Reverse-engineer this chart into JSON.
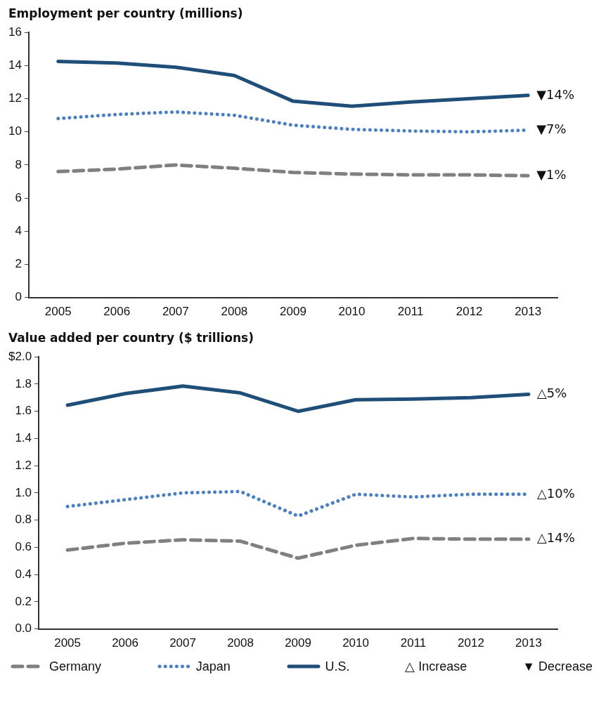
{
  "chart_data": [
    {
      "type": "line",
      "title": "Employment per country (millions)",
      "categories": [
        "2005",
        "2006",
        "2007",
        "2008",
        "2009",
        "2010",
        "2011",
        "2012",
        "2013"
      ],
      "ylim": [
        0,
        16
      ],
      "yticks": [
        0,
        2,
        4,
        6,
        8,
        10,
        12,
        14,
        16
      ],
      "grid": false,
      "legend": false,
      "marker": "none",
      "series": [
        {
          "color": "#808080",
          "line_style": "dashed",
          "values": [
            7.6,
            7.75,
            8.0,
            7.8,
            7.55,
            7.45,
            7.4,
            7.4,
            7.35
          ]
        },
        {
          "color": "#4a7fc1",
          "line_style": "dotted",
          "values": [
            10.8,
            11.05,
            11.2,
            11.0,
            10.4,
            10.15,
            10.05,
            10.0,
            10.1
          ]
        },
        {
          "color": "#1f4e79",
          "line_style": "solid",
          "values": [
            14.25,
            14.15,
            13.9,
            13.4,
            11.85,
            11.55,
            11.8,
            12.0,
            12.2
          ]
        }
      ],
      "annotations": [
        {
          "text": "▼14%",
          "x": "2013",
          "y": 12.2
        },
        {
          "text": "▼7%",
          "x": "2013",
          "y": 10.1
        },
        {
          "text": "▼1%",
          "x": "2013",
          "y": 7.35
        }
      ]
    },
    {
      "type": "line",
      "title": "Value added per country ($ trillions)",
      "categories": [
        "2005",
        "2006",
        "2007",
        "2008",
        "2009",
        "2010",
        "2011",
        "2012",
        "2013"
      ],
      "ylim": [
        0,
        2
      ],
      "yticks": [
        {
          "value": 0,
          "label": "0.0"
        },
        {
          "value": 0.2,
          "label": "0.2"
        },
        {
          "value": 0.4,
          "label": "0.4"
        },
        {
          "value": 0.6,
          "label": "0.6"
        },
        {
          "value": 0.8,
          "label": "0.8"
        },
        {
          "value": 1,
          "label": "1.0"
        },
        {
          "value": 1.2,
          "label": "1.2"
        },
        {
          "value": 1.4,
          "label": "1.4"
        },
        {
          "value": 1.6,
          "label": "1.6"
        },
        {
          "value": 1.8,
          "label": "1.8"
        },
        {
          "value": 2,
          "label": "$2.0"
        }
      ],
      "grid": false,
      "legend": "bottom",
      "marker": "none",
      "series": [
        {
          "name": "Germany",
          "color": "#808080",
          "line_style": "dashed",
          "values": [
            0.58,
            0.63,
            0.655,
            0.645,
            0.52,
            0.615,
            0.665,
            0.66,
            0.66
          ]
        },
        {
          "name": "Japan",
          "color": "#4a7fc1",
          "line_style": "dotted",
          "values": [
            0.9,
            0.95,
            1.0,
            1.01,
            0.83,
            0.99,
            0.97,
            0.99,
            0.99
          ]
        },
        {
          "name": "U.S.",
          "color": "#1f4e79",
          "line_style": "solid",
          "values": [
            1.645,
            1.73,
            1.785,
            1.735,
            1.6,
            1.685,
            1.69,
            1.7,
            1.725
          ]
        }
      ],
      "annotations": [
        {
          "text": "△5%",
          "x": "2013",
          "y": 1.725
        },
        {
          "text": "△10%",
          "x": "2013",
          "y": 0.99
        },
        {
          "text": "△14%",
          "x": "2013",
          "y": 0.66
        },
        "△ Increase",
        "▼ Decrease"
      ]
    }
  ]
}
